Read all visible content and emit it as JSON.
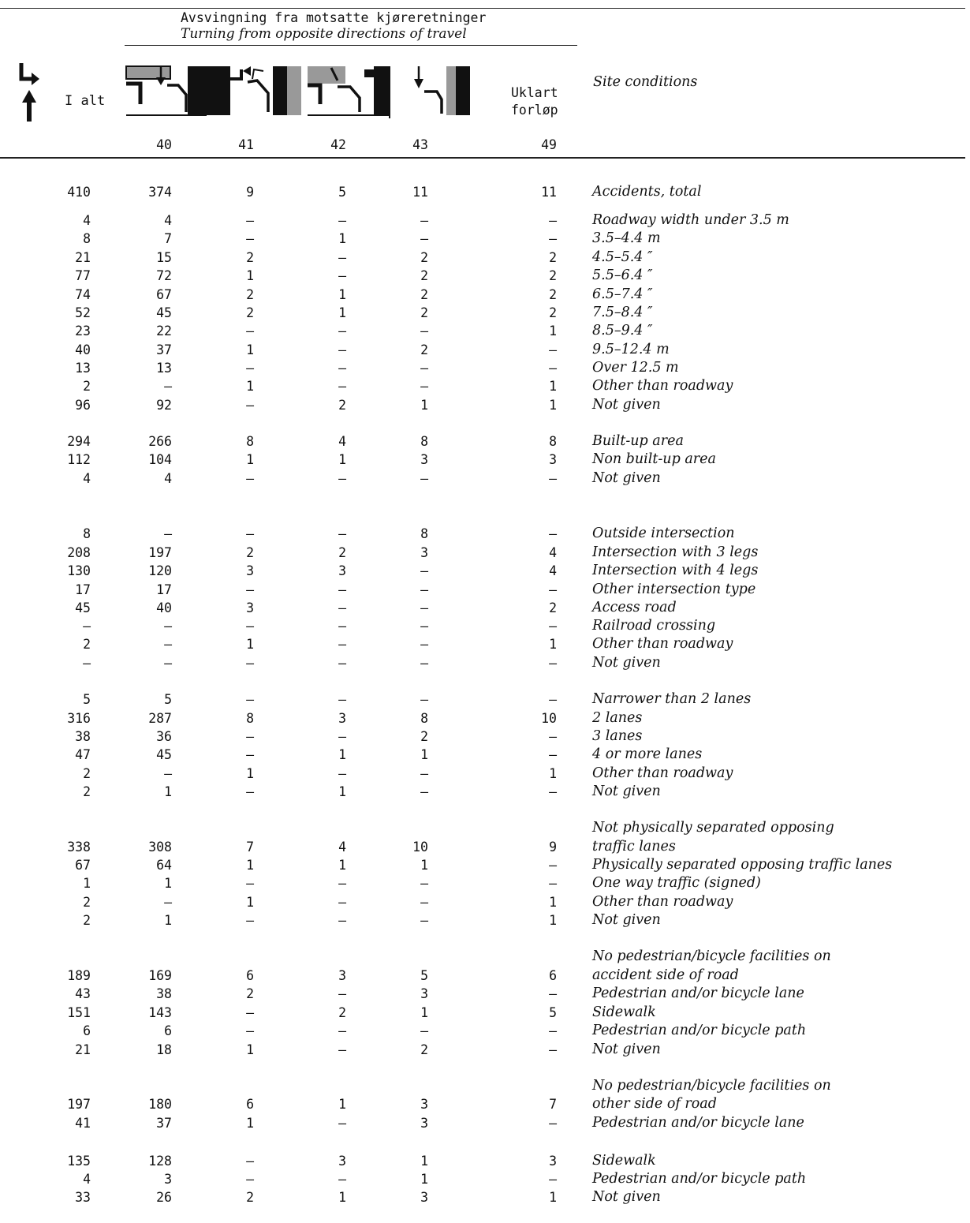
{
  "header": {
    "title_no": "Avsvingning fra motsatte kjøreretninger",
    "title_en": "Turning from opposite directions of travel",
    "col_total": "I alt",
    "col_unclear_1": "Uklart",
    "col_unclear_2": "forløp",
    "site_conditions": "Site conditions",
    "col_codes": [
      "40",
      "41",
      "42",
      "43",
      "49"
    ]
  },
  "rows": [
    {
      "v": [
        "410",
        "374",
        "9",
        "5",
        "11",
        "11"
      ],
      "label": "Accidents, total"
    },
    {
      "v": [
        "4",
        "4",
        "–",
        "–",
        "–",
        "–"
      ],
      "label": "Roadway width under 3.5 m"
    },
    {
      "v": [
        "8",
        "7",
        "–",
        "1",
        "–",
        "–"
      ],
      "label": "3.5–4.4 m"
    },
    {
      "v": [
        "21",
        "15",
        "2",
        "–",
        "2",
        "2"
      ],
      "label": "4.5–5.4 ″"
    },
    {
      "v": [
        "77",
        "72",
        "1",
        "–",
        "2",
        "2"
      ],
      "label": "5.5–6.4 ″"
    },
    {
      "v": [
        "74",
        "67",
        "2",
        "1",
        "2",
        "2"
      ],
      "label": "6.5–7.4 ″"
    },
    {
      "v": [
        "52",
        "45",
        "2",
        "1",
        "2",
        "2"
      ],
      "label": "7.5–8.4 ″"
    },
    {
      "v": [
        "23",
        "22",
        "–",
        "–",
        "–",
        "1"
      ],
      "label": "8.5–9.4 ″"
    },
    {
      "v": [
        "40",
        "37",
        "1",
        "–",
        "2",
        "–"
      ],
      "label": "9.5–12.4 m"
    },
    {
      "v": [
        "13",
        "13",
        "–",
        "–",
        "–",
        "–"
      ],
      "label": "Over 12.5 m"
    },
    {
      "v": [
        "2",
        "–",
        "1",
        "–",
        "–",
        "1"
      ],
      "label": "Other than roadway"
    },
    {
      "v": [
        "96",
        "92",
        "–",
        "2",
        "1",
        "1"
      ],
      "label": "Not given"
    },
    {
      "v": [
        "294",
        "266",
        "8",
        "4",
        "8",
        "8"
      ],
      "label": "Built-up area"
    },
    {
      "v": [
        "112",
        "104",
        "1",
        "1",
        "3",
        "3"
      ],
      "label": "Non built-up area"
    },
    {
      "v": [
        "4",
        "4",
        "–",
        "–",
        "–",
        "–"
      ],
      "label": "Not given"
    },
    {
      "v": [
        "8",
        "–",
        "–",
        "–",
        "8",
        "–"
      ],
      "label": "Outside intersection"
    },
    {
      "v": [
        "208",
        "197",
        "2",
        "2",
        "3",
        "4"
      ],
      "label": "Intersection with 3 legs"
    },
    {
      "v": [
        "130",
        "120",
        "3",
        "3",
        "–",
        "4"
      ],
      "label": "Intersection with 4 legs"
    },
    {
      "v": [
        "17",
        "17",
        "–",
        "–",
        "–",
        "–"
      ],
      "label": "Other intersection type"
    },
    {
      "v": [
        "45",
        "40",
        "3",
        "–",
        "–",
        "2"
      ],
      "label": "Access road"
    },
    {
      "v": [
        "–",
        "–",
        "–",
        "–",
        "–",
        "–"
      ],
      "label": "Railroad crossing"
    },
    {
      "v": [
        "2",
        "–",
        "1",
        "–",
        "–",
        "1"
      ],
      "label": "Other than roadway"
    },
    {
      "v": [
        "–",
        "–",
        "–",
        "–",
        "–",
        "–"
      ],
      "label": "Not given"
    },
    {
      "v": [
        "5",
        "5",
        "–",
        "–",
        "–",
        "–"
      ],
      "label": "Narrower than 2 lanes"
    },
    {
      "v": [
        "316",
        "287",
        "8",
        "3",
        "8",
        "10"
      ],
      "label": "2 lanes"
    },
    {
      "v": [
        "38",
        "36",
        "–",
        "–",
        "2",
        "–"
      ],
      "label": "3 lanes"
    },
    {
      "v": [
        "47",
        "45",
        "–",
        "1",
        "1",
        "–"
      ],
      "label": "4 or more lanes"
    },
    {
      "v": [
        "2",
        "–",
        "1",
        "–",
        "–",
        "1"
      ],
      "label": "Other than roadway"
    },
    {
      "v": [
        "2",
        "1",
        "–",
        "1",
        "–",
        "–"
      ],
      "label": "Not given"
    },
    {
      "v": [
        "338",
        "308",
        "7",
        "4",
        "10",
        "9"
      ],
      "label": "traffic lanes"
    },
    {
      "v": [
        "67",
        "64",
        "1",
        "1",
        "1",
        "–"
      ],
      "label": "Physically separated opposing traffic lanes"
    },
    {
      "v": [
        "1",
        "1",
        "–",
        "–",
        "–",
        "–"
      ],
      "label": "One way traffic (signed)"
    },
    {
      "v": [
        "2",
        "–",
        "1",
        "–",
        "–",
        "1"
      ],
      "label": "Other than roadway"
    },
    {
      "v": [
        "2",
        "1",
        "–",
        "–",
        "–",
        "1"
      ],
      "label": "Not given"
    },
    {
      "v": [
        "189",
        "169",
        "6",
        "3",
        "5",
        "6"
      ],
      "label": "accident side of road"
    },
    {
      "v": [
        "43",
        "38",
        "2",
        "–",
        "3",
        "–"
      ],
      "label": "Pedestrian and/or bicycle lane"
    },
    {
      "v": [
        "151",
        "143",
        "–",
        "2",
        "1",
        "5"
      ],
      "label": "Sidewalk"
    },
    {
      "v": [
        "6",
        "6",
        "–",
        "–",
        "–",
        "–"
      ],
      "label": "Pedestrian and/or bicycle path"
    },
    {
      "v": [
        "21",
        "18",
        "1",
        "–",
        "2",
        "–"
      ],
      "label": "Not given"
    },
    {
      "v": [
        "197",
        "180",
        "6",
        "1",
        "3",
        "7"
      ],
      "label": "other side of road"
    },
    {
      "v": [
        "41",
        "37",
        "1",
        "–",
        "3",
        "–"
      ],
      "label": "Pedestrian and/or bicycle lane"
    },
    {
      "v": [
        "135",
        "128",
        "–",
        "3",
        "1",
        "3"
      ],
      "label": "Sidewalk"
    },
    {
      "v": [
        "4",
        "3",
        "–",
        "–",
        "1",
        "–"
      ],
      "label": "Pedestrian and/or bicycle path"
    },
    {
      "v": [
        "33",
        "26",
        "2",
        "1",
        "3",
        "1"
      ],
      "label": "Not given"
    }
  ],
  "notes": [
    "Not physically separated opposing",
    "No pedestrian/bicycle facilities on",
    "No pedestrian/bicycle facilities on"
  ]
}
